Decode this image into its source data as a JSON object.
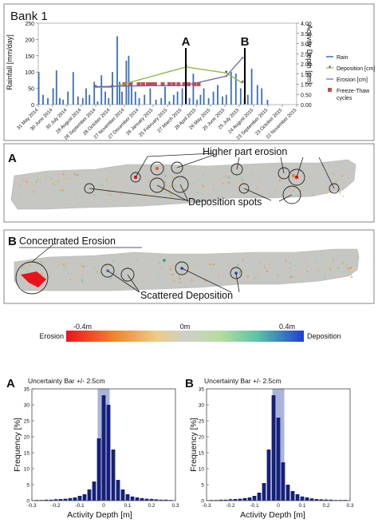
{
  "top_chart": {
    "title": "Bank 1",
    "ylabel_left": "Rainfall [mm/day]",
    "ylabel_right": "Activity Depth [cm]",
    "left_ticks": [
      "0",
      "50",
      "100",
      "150",
      "200",
      "250"
    ],
    "right_ticks": [
      "0.00",
      "0.50",
      "1.00",
      "1.50",
      "2.00",
      "2.50",
      "3.00",
      "3.50",
      "4.00"
    ],
    "x_ticks": [
      "31 May 2014",
      "30 June 2014",
      "30 July 2014",
      "29 August 2014",
      "28 September 2014",
      "28 October 2014",
      "27 November 2014",
      "27 December 2014",
      "26 January 2015",
      "25 February 2015",
      "27 March 2015",
      "26 April 2015",
      "26 May 2015",
      "25 June 2015",
      "25 July 2015",
      "24 August 2015",
      "23 September 2015",
      "23 October 2015",
      "22 November 2015"
    ],
    "marker_a": "A",
    "marker_b": "B",
    "legend": {
      "rain": "Rain",
      "deposition": "Deposition [cm]",
      "erosion": "Erosion [cm]",
      "freeze1": "Freeze-Thaw",
      "freeze2": "cycles"
    },
    "colors": {
      "rain": "#3a6ebd",
      "deposition": "#8db63c",
      "erosion": "#7264b0",
      "freeze": "#c0504d"
    }
  },
  "map_a": {
    "label": "A",
    "annotation_top": "Higher part erosion",
    "annotation_bottom": "Deposition spots"
  },
  "map_b": {
    "label": "B",
    "annotation_top": "Concentrated Erosion",
    "annotation_bottom": "Scattered Deposition"
  },
  "colorbar": {
    "left_end": "-0.4m",
    "middle": "0m",
    "right_end": "0.4m",
    "left_label": "Erosion",
    "right_label": "Deposition"
  },
  "hist_a": {
    "label": "A",
    "title": "Uncertainty Bar +/- 2.5cm",
    "ylabel": "Frequency [%]",
    "xlabel": "Activity Depth [m]",
    "y_ticks": [
      "0",
      "5",
      "10",
      "15",
      "20",
      "25",
      "30",
      "35"
    ],
    "x_ticks": [
      "-0.3",
      "-0.2",
      "-0.1",
      "0",
      "0.1",
      "0.2",
      "0.3"
    ]
  },
  "hist_b": {
    "label": "B",
    "title": "Uncertainty Bar +/- 2.5cm",
    "ylabel": "Frequency [%]",
    "xlabel": "Activity Depth [m]",
    "y_ticks": [
      "0",
      "5",
      "10",
      "15",
      "20",
      "25",
      "30",
      "35"
    ],
    "x_ticks": [
      "-0.3",
      "-0.2",
      "-0.1",
      "0",
      "0.1",
      "0.2",
      "0.3"
    ]
  },
  "chart_data": [
    {
      "type": "bar",
      "title": "Bank 1",
      "ylabel": "Rainfall [mm/day]",
      "ylim": [
        0,
        250
      ],
      "x_range": [
        "31 May 2014",
        "22 November 2015"
      ],
      "series": [
        {
          "name": "Rain",
          "type": "bar",
          "x": [
            "2014-06-01",
            "2014-06-10",
            "2014-06-20",
            "2014-07-01",
            "2014-07-08",
            "2014-07-15",
            "2014-07-22",
            "2014-08-01",
            "2014-08-12",
            "2014-08-22",
            "2014-09-01",
            "2014-09-08",
            "2014-09-15",
            "2014-09-25",
            "2014-10-02",
            "2014-10-10",
            "2014-10-18",
            "2014-10-25",
            "2014-11-02",
            "2014-11-12",
            "2014-11-17",
            "2014-11-22",
            "2014-12-01",
            "2014-12-06",
            "2014-12-12",
            "2014-12-20",
            "2014-12-28",
            "2015-01-08",
            "2015-01-20",
            "2015-02-01",
            "2015-02-12",
            "2015-02-20",
            "2015-03-01",
            "2015-03-10",
            "2015-03-18",
            "2015-03-28",
            "2015-04-05",
            "2015-04-12",
            "2015-04-20",
            "2015-04-28",
            "2015-05-05",
            "2015-05-12",
            "2015-05-22",
            "2015-06-01",
            "2015-06-10",
            "2015-06-20",
            "2015-06-28",
            "2015-07-08",
            "2015-07-18",
            "2015-07-28",
            "2015-08-05",
            "2015-08-12",
            "2015-08-20",
            "2015-09-01",
            "2015-09-10",
            "2015-09-22"
          ],
          "values": [
            100,
            30,
            20,
            50,
            105,
            20,
            15,
            40,
            100,
            25,
            20,
            50,
            30,
            70,
            10,
            90,
            40,
            20,
            100,
            210,
            70,
            40,
            135,
            150,
            60,
            40,
            20,
            30,
            50,
            15,
            20,
            55,
            10,
            30,
            40,
            50,
            70,
            20,
            95,
            15,
            30,
            50,
            20,
            40,
            60,
            25,
            30,
            100,
            95,
            50,
            20,
            30,
            110,
            60,
            50,
            15
          ]
        }
      ]
    },
    {
      "type": "line",
      "ylabel": "Activity Depth [cm]",
      "ylim": [
        0,
        4
      ],
      "series": [
        {
          "name": "Deposition [cm]",
          "x": [
            "2014-09-28",
            "2014-11-01",
            "2015-04-05",
            "2015-06-28",
            "2015-08-01"
          ],
          "y": [
            0.85,
            0.85,
            1.85,
            1.55,
            1.05
          ]
        },
        {
          "name": "Erosion [cm]",
          "x": [
            "2014-09-28",
            "2014-11-01",
            "2015-04-05",
            "2015-06-28",
            "2015-08-01"
          ],
          "y": [
            0.88,
            0.9,
            0.95,
            1.4,
            2.3
          ]
        },
        {
          "name": "Freeze-Thaw cycles",
          "type": "scatter",
          "x": [
            "2014-11-27",
            "2014-12-10",
            "2014-12-27",
            "2015-01-05",
            "2015-01-15",
            "2015-01-22",
            "2015-01-30",
            "2015-02-15",
            "2015-03-01",
            "2015-03-10",
            "2015-03-20",
            "2015-04-01",
            "2015-04-10",
            "2015-04-22",
            "2015-05-01"
          ],
          "y": [
            1,
            1,
            1,
            1,
            1,
            1,
            1,
            1,
            1,
            1,
            1,
            1,
            1,
            1,
            1
          ]
        }
      ]
    },
    {
      "type": "bar",
      "title": "Uncertainty Bar +/- 2.5cm",
      "xlabel": "Activity Depth [m]",
      "ylabel": "Frequency [%]",
      "ylim": [
        0,
        35
      ],
      "xlim": [
        -0.3,
        0.3
      ],
      "x": [
        -0.28,
        -0.26,
        -0.24,
        -0.22,
        -0.2,
        -0.18,
        -0.16,
        -0.14,
        -0.12,
        -0.1,
        -0.08,
        -0.06,
        -0.04,
        -0.02,
        0,
        0.02,
        0.04,
        0.06,
        0.08,
        0.1,
        0.12,
        0.14,
        0.16,
        0.18,
        0.2,
        0.22,
        0.24,
        0.26,
        0.28
      ],
      "values": [
        0.2,
        0.2,
        0.3,
        0.3,
        0.4,
        0.5,
        0.6,
        0.8,
        1.0,
        1.5,
        2.0,
        3.5,
        6.0,
        19.5,
        33.0,
        30.0,
        16.0,
        6.5,
        3.5,
        2.0,
        1.3,
        1.0,
        0.8,
        0.6,
        0.5,
        0.4,
        0.3,
        0.3,
        0.2
      ]
    },
    {
      "type": "bar",
      "title": "Uncertainty Bar +/- 2.5cm",
      "xlabel": "Activity Depth [m]",
      "ylabel": "Frequency [%]",
      "ylim": [
        0,
        35
      ],
      "xlim": [
        -0.3,
        0.3
      ],
      "x": [
        -0.28,
        -0.26,
        -0.24,
        -0.22,
        -0.2,
        -0.18,
        -0.16,
        -0.14,
        -0.12,
        -0.1,
        -0.08,
        -0.06,
        -0.04,
        -0.02,
        0,
        0.02,
        0.04,
        0.06,
        0.08,
        0.1,
        0.12,
        0.14,
        0.16,
        0.18,
        0.2,
        0.22,
        0.24,
        0.26,
        0.28
      ],
      "values": [
        0.2,
        0.2,
        0.3,
        0.3,
        0.4,
        0.5,
        0.6,
        0.8,
        1.0,
        1.5,
        2.5,
        5.5,
        16.0,
        33.0,
        26.0,
        12.0,
        5.0,
        3.0,
        2.0,
        1.3,
        1.0,
        0.7,
        0.5,
        0.4,
        0.3,
        0.3,
        0.2,
        0.2,
        0.2
      ]
    }
  ]
}
